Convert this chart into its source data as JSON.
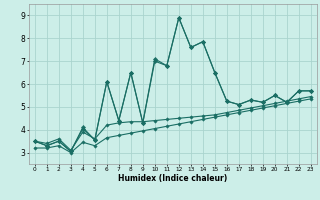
{
  "title": "",
  "xlabel": "Humidex (Indice chaleur)",
  "background_color": "#cceee8",
  "grid_color": "#aad4ce",
  "line_color": "#1a6e64",
  "xlim": [
    -0.5,
    23.5
  ],
  "ylim": [
    2.5,
    9.5
  ],
  "yticks": [
    3,
    4,
    5,
    6,
    7,
    8,
    9
  ],
  "xticks": [
    0,
    1,
    2,
    3,
    4,
    5,
    6,
    7,
    8,
    9,
    10,
    11,
    12,
    13,
    14,
    15,
    16,
    17,
    18,
    19,
    20,
    21,
    22,
    23
  ],
  "series": [
    [
      3.5,
      3.3,
      3.5,
      3.05,
      4.05,
      3.55,
      6.1,
      4.4,
      6.5,
      4.3,
      7.0,
      6.8,
      8.9,
      7.6,
      7.85,
      6.5,
      5.25,
      5.1,
      5.3,
      5.2,
      5.5,
      5.2,
      5.7,
      5.7
    ],
    [
      3.5,
      3.3,
      3.5,
      3.05,
      4.1,
      3.55,
      6.1,
      4.4,
      6.5,
      4.3,
      7.1,
      6.8,
      8.9,
      7.6,
      7.85,
      6.5,
      5.25,
      5.1,
      5.3,
      5.2,
      5.5,
      5.2,
      5.7,
      5.7
    ],
    [
      3.5,
      3.4,
      3.6,
      3.1,
      3.9,
      3.6,
      4.2,
      4.3,
      4.35,
      4.35,
      4.4,
      4.45,
      4.5,
      4.55,
      4.6,
      4.65,
      4.75,
      4.85,
      4.95,
      5.05,
      5.15,
      5.25,
      5.35,
      5.45
    ],
    [
      3.2,
      3.2,
      3.3,
      3.0,
      3.45,
      3.3,
      3.65,
      3.75,
      3.85,
      3.95,
      4.05,
      4.15,
      4.25,
      4.35,
      4.45,
      4.55,
      4.65,
      4.75,
      4.85,
      4.95,
      5.05,
      5.15,
      5.25,
      5.35
    ]
  ]
}
